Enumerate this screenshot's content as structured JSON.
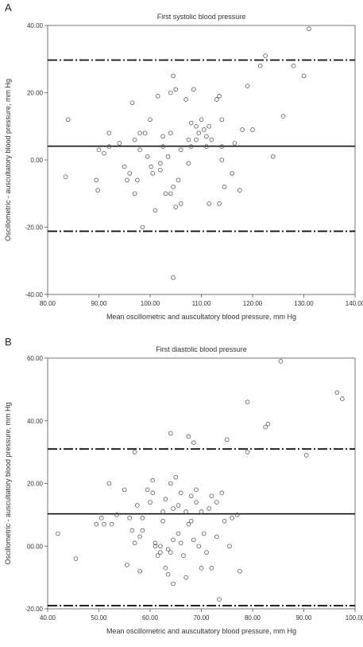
{
  "chart_data": [
    {
      "panel_label": "A",
      "type": "scatter",
      "title": "First systolic blood pressure",
      "xlabel": "Mean oscillometric and auscultatory blood pressure, mm Hg",
      "ylabel": "Oscillometric - auscultatory blood pressure, mm Hg",
      "xlim": [
        80,
        140
      ],
      "ylim": [
        -40,
        40
      ],
      "x_ticks": [
        "80.00",
        "90.00",
        "100.00",
        "110.00",
        "120.00",
        "130.00",
        "140.00"
      ],
      "y_ticks": [
        "-40.00",
        "-20.00",
        "0.00",
        "20.00",
        "40.00"
      ],
      "x_tick_values": [
        80,
        90,
        100,
        110,
        120,
        130,
        140
      ],
      "y_tick_values": [
        -40,
        -20,
        0,
        20,
        40
      ],
      "reference_lines": [
        {
          "y": 29.7,
          "style": "dash-dot"
        },
        {
          "y": 4.1,
          "style": "solid"
        },
        {
          "y": -21.2,
          "style": "dash-dot"
        }
      ],
      "points": [
        [
          83.5,
          -5
        ],
        [
          84,
          12
        ],
        [
          89.5,
          -6
        ],
        [
          89.8,
          -9
        ],
        [
          90,
          3
        ],
        [
          91,
          2
        ],
        [
          92,
          8
        ],
        [
          92,
          4
        ],
        [
          94,
          5
        ],
        [
          95,
          -2
        ],
        [
          95.5,
          -6
        ],
        [
          96,
          -4
        ],
        [
          96.5,
          17
        ],
        [
          97,
          6
        ],
        [
          97,
          -10
        ],
        [
          97.5,
          -6
        ],
        [
          98,
          3
        ],
        [
          98,
          8
        ],
        [
          98.5,
          -20
        ],
        [
          99,
          8
        ],
        [
          99.5,
          1
        ],
        [
          100,
          12
        ],
        [
          100.2,
          -2
        ],
        [
          100.5,
          -4
        ],
        [
          101,
          -15
        ],
        [
          101.5,
          19
        ],
        [
          102,
          -1
        ],
        [
          102,
          -3
        ],
        [
          102.5,
          7
        ],
        [
          102.5,
          4
        ],
        [
          103,
          -10
        ],
        [
          103.5,
          1
        ],
        [
          104,
          20
        ],
        [
          104,
          8
        ],
        [
          104,
          -10
        ],
        [
          104.5,
          25
        ],
        [
          104.5,
          -8
        ],
        [
          104.5,
          -35
        ],
        [
          105,
          21
        ],
        [
          105,
          -14
        ],
        [
          105.5,
          -6
        ],
        [
          106,
          3
        ],
        [
          106,
          -13
        ],
        [
          107,
          18
        ],
        [
          107.5,
          6
        ],
        [
          107.5,
          -1
        ],
        [
          108,
          11
        ],
        [
          108,
          4
        ],
        [
          108.5,
          21
        ],
        [
          109,
          10
        ],
        [
          109,
          6
        ],
        [
          109.5,
          8
        ],
        [
          110,
          12
        ],
        [
          110.5,
          9
        ],
        [
          111,
          7
        ],
        [
          111,
          4
        ],
        [
          111.5,
          10
        ],
        [
          111.5,
          -13
        ],
        [
          112,
          6
        ],
        [
          113,
          18
        ],
        [
          113.5,
          19
        ],
        [
          113.5,
          -13
        ],
        [
          114,
          12
        ],
        [
          114,
          4
        ],
        [
          114,
          0
        ],
        [
          114.5,
          -8
        ],
        [
          116,
          -4
        ],
        [
          116.5,
          5
        ],
        [
          117.5,
          -9
        ],
        [
          118,
          9
        ],
        [
          119,
          22
        ],
        [
          120,
          9
        ],
        [
          121.5,
          28
        ],
        [
          122.5,
          31
        ],
        [
          124,
          1
        ],
        [
          126,
          13
        ],
        [
          128,
          28
        ],
        [
          130,
          25
        ],
        [
          131,
          39
        ]
      ]
    },
    {
      "panel_label": "B",
      "type": "scatter",
      "title": "First diastolic blood pressure",
      "xlabel": "Mean oscillometric and auscultatory blood pressure, mm Hg",
      "ylabel": "Oscillometric - auscultatory blood pressure, mm Hg",
      "xlim": [
        40,
        100
      ],
      "ylim": [
        -20,
        60
      ],
      "x_ticks": [
        "40.00",
        "50.00",
        "60.00",
        "70.00",
        "80.00",
        "90.00",
        "100.00"
      ],
      "y_ticks": [
        "-20.00",
        "00.00",
        "20.00",
        "40.00",
        "60.00"
      ],
      "x_tick_values": [
        40,
        50,
        60,
        70,
        80,
        90,
        100
      ],
      "y_tick_values": [
        -20,
        0,
        20,
        40,
        60
      ],
      "reference_lines": [
        {
          "y": 31,
          "style": "dash-dot"
        },
        {
          "y": 10.3,
          "style": "solid"
        },
        {
          "y": -19,
          "style": "dash-dot"
        }
      ],
      "points": [
        [
          42,
          4
        ],
        [
          45.5,
          -4
        ],
        [
          49.5,
          7
        ],
        [
          50.5,
          9
        ],
        [
          51,
          7
        ],
        [
          52,
          20
        ],
        [
          52.5,
          7
        ],
        [
          53.5,
          10
        ],
        [
          55,
          18
        ],
        [
          55.5,
          -6
        ],
        [
          56,
          9
        ],
        [
          56.5,
          5
        ],
        [
          57,
          30
        ],
        [
          57,
          1
        ],
        [
          57.5,
          13
        ],
        [
          58,
          -8
        ],
        [
          58,
          3
        ],
        [
          58.5,
          9
        ],
        [
          58.5,
          5
        ],
        [
          59.5,
          18
        ],
        [
          60,
          14
        ],
        [
          60.5,
          21
        ],
        [
          60.5,
          17
        ],
        [
          61,
          1
        ],
        [
          61,
          0
        ],
        [
          61.5,
          -3
        ],
        [
          62,
          0
        ],
        [
          62,
          -2
        ],
        [
          62.5,
          11
        ],
        [
          62.5,
          8
        ],
        [
          63,
          -7
        ],
        [
          63,
          15
        ],
        [
          63.5,
          -1
        ],
        [
          63.5,
          -9
        ],
        [
          64,
          36
        ],
        [
          64,
          -2
        ],
        [
          64,
          20
        ],
        [
          64.5,
          12
        ],
        [
          64.5,
          2
        ],
        [
          64.5,
          -12
        ],
        [
          65,
          22
        ],
        [
          65.5,
          13
        ],
        [
          65.5,
          4
        ],
        [
          66,
          17
        ],
        [
          66,
          1
        ],
        [
          66.5,
          -3
        ],
        [
          67,
          11
        ],
        [
          67,
          -10
        ],
        [
          67.5,
          35
        ],
        [
          67.5,
          7
        ],
        [
          68,
          16
        ],
        [
          68,
          8
        ],
        [
          68.5,
          33
        ],
        [
          68.5,
          2
        ],
        [
          69,
          14
        ],
        [
          69,
          18
        ],
        [
          69.5,
          0
        ],
        [
          70,
          11
        ],
        [
          70,
          -7
        ],
        [
          70.5,
          4
        ],
        [
          71,
          -2
        ],
        [
          71.5,
          12
        ],
        [
          72,
          16
        ],
        [
          72,
          -7
        ],
        [
          73,
          14
        ],
        [
          73,
          3
        ],
        [
          73.5,
          -17
        ],
        [
          74,
          17
        ],
        [
          74.5,
          8
        ],
        [
          75,
          34
        ],
        [
          75.5,
          0
        ],
        [
          76,
          9
        ],
        [
          77,
          10
        ],
        [
          77.5,
          -8
        ],
        [
          79,
          46
        ],
        [
          79,
          30
        ],
        [
          82.5,
          38
        ],
        [
          83,
          39
        ],
        [
          85.5,
          59
        ],
        [
          90.5,
          29
        ],
        [
          96.5,
          49
        ],
        [
          97.5,
          47
        ]
      ]
    }
  ]
}
